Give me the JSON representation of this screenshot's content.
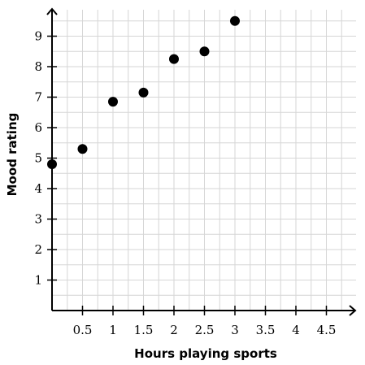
{
  "chart_data": {
    "type": "scatter",
    "title": "",
    "xlabel": "Hours playing sports",
    "ylabel": "Mood rating",
    "xlim": [
      0,
      5
    ],
    "ylim": [
      0,
      10
    ],
    "x_ticks": [
      "0.5",
      "1",
      "1.5",
      "2",
      "2.5",
      "3",
      "3.5",
      "4",
      "4.5"
    ],
    "y_ticks": [
      "1",
      "2",
      "3",
      "4",
      "5",
      "6",
      "7",
      "8",
      "9"
    ],
    "grid": true,
    "points": [
      {
        "x": 0,
        "y": 4.8
      },
      {
        "x": 0.5,
        "y": 5.3
      },
      {
        "x": 1,
        "y": 6.85
      },
      {
        "x": 1.5,
        "y": 7.15
      },
      {
        "x": 2,
        "y": 8.25
      },
      {
        "x": 2.5,
        "y": 8.5
      },
      {
        "x": 3,
        "y": 9.5
      }
    ],
    "colors": {
      "point": "#000000",
      "grid": "#d6d6d6",
      "axis": "#000000"
    }
  }
}
